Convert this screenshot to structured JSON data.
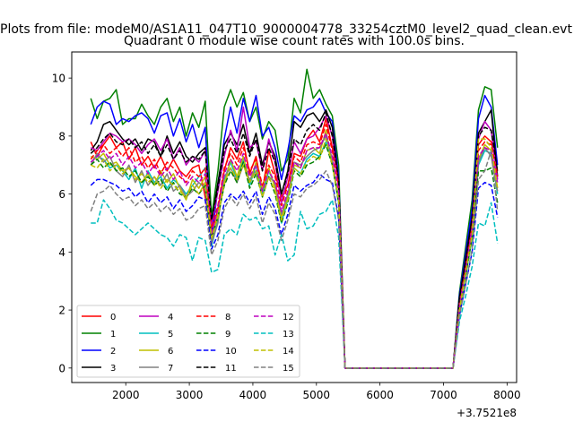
{
  "figure": {
    "suptitle": "Plots from file: modeM0/AS1A11_047T10_9000004778_33254cztM0_level2_quad_clean.evt"
  },
  "chart_data": {
    "type": "line",
    "title": "Quadrant 0 module wise count rates with 100.0s bins.",
    "xlabel": "",
    "ylabel": "",
    "x_offset_label": "+3.7521e8",
    "xlim": [
      1150,
      8150
    ],
    "ylim": [
      -0.5,
      10.9
    ],
    "x_ticks": [
      2000,
      3000,
      4000,
      5000,
      6000,
      7000,
      8000
    ],
    "x_tick_labels": [
      "2000",
      "3000",
      "4000",
      "5000",
      "6000",
      "7000",
      "8000"
    ],
    "y_ticks": [
      0,
      2,
      4,
      6,
      8,
      10
    ],
    "y_tick_labels": [
      "0",
      "2",
      "4",
      "6",
      "8",
      "10"
    ],
    "grid": false,
    "legend_placement": "lower-left",
    "legend_columns": 4,
    "x": [
      1450,
      1550,
      1650,
      1750,
      1850,
      1950,
      2050,
      2150,
      2250,
      2350,
      2450,
      2550,
      2650,
      2750,
      2850,
      2950,
      3050,
      3150,
      3250,
      3350,
      3450,
      3550,
      3650,
      3750,
      3850,
      3950,
      4050,
      4150,
      4250,
      4350,
      4450,
      4550,
      4650,
      4750,
      4850,
      4950,
      5050,
      5150,
      5250,
      5350,
      5450,
      5550,
      5650,
      5750,
      5850,
      5950,
      6050,
      6150,
      6250,
      6350,
      6450,
      6550,
      6650,
      6750,
      6850,
      6950,
      7050,
      7150,
      7250,
      7350,
      7450,
      7550,
      7650,
      7750,
      7850
    ],
    "series": [
      {
        "name": "0",
        "color": "#ff0000",
        "dash": "solid",
        "values": [
          7.8,
          7.3,
          7.7,
          8.0,
          7.6,
          7.8,
          7.2,
          7.6,
          7.0,
          7.3,
          6.9,
          7.3,
          6.8,
          7.2,
          6.8,
          6.6,
          6.9,
          7.0,
          5.9,
          4.6,
          5.5,
          6.8,
          7.6,
          7.2,
          7.8,
          6.7,
          7.3,
          6.1,
          7.5,
          6.7,
          5.9,
          6.3,
          7.4,
          7.3,
          7.9,
          8.2,
          7.8,
          8.6,
          7.6,
          6.5,
          0.0,
          0.0,
          0.0,
          0.0,
          0.0,
          0.0,
          0.0,
          0.0,
          0.0,
          0.0,
          0.0,
          0.0,
          0.0,
          0.0,
          0.0,
          0.0,
          0.0,
          0.0,
          2.3,
          3.6,
          5.0,
          7.7,
          8.0,
          7.8,
          6.8
        ]
      },
      {
        "name": "1",
        "color": "#008000",
        "dash": "solid",
        "values": [
          9.3,
          8.6,
          9.2,
          9.3,
          9.6,
          8.4,
          8.6,
          8.6,
          9.1,
          8.7,
          8.4,
          9.0,
          9.3,
          8.5,
          9.0,
          8.0,
          8.8,
          8.3,
          9.2,
          5.2,
          6.8,
          9.0,
          9.6,
          9.0,
          9.5,
          8.5,
          9.0,
          7.9,
          8.5,
          8.2,
          6.8,
          7.2,
          9.3,
          8.8,
          10.3,
          9.3,
          9.6,
          9.1,
          8.7,
          7.0,
          0.0,
          0.0,
          0.0,
          0.0,
          0.0,
          0.0,
          0.0,
          0.0,
          0.0,
          0.0,
          0.0,
          0.0,
          0.0,
          0.0,
          0.0,
          0.0,
          0.0,
          0.0,
          2.6,
          4.2,
          5.8,
          8.9,
          9.7,
          9.6,
          7.6
        ]
      },
      {
        "name": "2",
        "color": "#0000ff",
        "dash": "solid",
        "values": [
          8.4,
          9.0,
          9.2,
          9.1,
          8.4,
          8.6,
          8.5,
          8.7,
          8.8,
          8.6,
          8.1,
          8.7,
          8.8,
          8.0,
          8.6,
          7.8,
          8.4,
          7.6,
          8.3,
          4.5,
          6.2,
          7.9,
          9.0,
          8.1,
          9.3,
          8.5,
          9.4,
          8.0,
          8.3,
          7.6,
          6.5,
          7.5,
          8.7,
          8.5,
          8.9,
          9.0,
          9.3,
          8.8,
          8.5,
          6.6,
          0.0,
          0.0,
          0.0,
          0.0,
          0.0,
          0.0,
          0.0,
          0.0,
          0.0,
          0.0,
          0.0,
          0.0,
          0.0,
          0.0,
          0.0,
          0.0,
          0.0,
          0.0,
          2.5,
          4.0,
          5.5,
          8.6,
          9.4,
          9.0,
          7.0
        ]
      },
      {
        "name": "3",
        "color": "#000000",
        "dash": "solid",
        "values": [
          7.5,
          7.8,
          8.4,
          8.5,
          8.2,
          7.9,
          7.7,
          7.9,
          7.5,
          7.9,
          7.8,
          7.3,
          8.0,
          7.4,
          7.8,
          7.3,
          7.1,
          7.4,
          7.6,
          5.0,
          6.4,
          7.7,
          8.1,
          7.7,
          8.4,
          7.4,
          8.1,
          7.0,
          7.8,
          7.3,
          6.0,
          6.8,
          8.5,
          8.3,
          8.7,
          8.8,
          8.5,
          8.9,
          8.3,
          6.4,
          0.0,
          0.0,
          0.0,
          0.0,
          0.0,
          0.0,
          0.0,
          0.0,
          0.0,
          0.0,
          0.0,
          0.0,
          0.0,
          0.0,
          0.0,
          0.0,
          0.0,
          0.0,
          2.4,
          3.8,
          5.2,
          8.1,
          8.5,
          8.9,
          6.6
        ]
      },
      {
        "name": "4",
        "color": "#bf00bf",
        "dash": "solid",
        "values": [
          7.6,
          7.5,
          7.8,
          8.1,
          8.0,
          7.8,
          7.9,
          7.7,
          7.4,
          7.7,
          7.9,
          7.5,
          7.9,
          7.2,
          7.6,
          7.0,
          7.3,
          7.1,
          7.5,
          4.9,
          6.1,
          7.3,
          8.2,
          7.5,
          9.0,
          7.6,
          7.8,
          6.8,
          7.9,
          7.1,
          5.7,
          6.6,
          7.8,
          7.4,
          7.9,
          8.0,
          8.3,
          8.7,
          8.0,
          6.2,
          0.0,
          0.0,
          0.0,
          0.0,
          0.0,
          0.0,
          0.0,
          0.0,
          0.0,
          0.0,
          0.0,
          0.0,
          0.0,
          0.0,
          0.0,
          0.0,
          0.0,
          0.0,
          2.2,
          3.5,
          4.9,
          7.9,
          8.5,
          8.2,
          6.5
        ]
      },
      {
        "name": "5",
        "color": "#00bfbf",
        "dash": "solid",
        "values": [
          7.1,
          7.3,
          7.2,
          6.9,
          7.0,
          6.8,
          6.5,
          6.9,
          6.2,
          6.8,
          6.4,
          6.6,
          6.2,
          6.5,
          6.3,
          6.0,
          6.3,
          6.6,
          6.9,
          4.2,
          5.1,
          6.5,
          7.1,
          6.5,
          7.2,
          6.3,
          7.0,
          6.0,
          6.8,
          6.3,
          5.0,
          5.8,
          6.9,
          6.7,
          7.2,
          7.4,
          7.3,
          7.8,
          7.1,
          5.7,
          0.0,
          0.0,
          0.0,
          0.0,
          0.0,
          0.0,
          0.0,
          0.0,
          0.0,
          0.0,
          0.0,
          0.0,
          0.0,
          0.0,
          0.0,
          0.0,
          0.0,
          0.0,
          2.0,
          3.2,
          4.5,
          7.0,
          7.5,
          7.4,
          6.0
        ]
      },
      {
        "name": "6",
        "color": "#bfbf00",
        "dash": "solid",
        "values": [
          7.3,
          7.2,
          7.4,
          7.0,
          7.1,
          6.8,
          6.9,
          6.6,
          6.4,
          6.7,
          6.3,
          6.8,
          6.4,
          6.7,
          6.2,
          5.8,
          6.5,
          6.2,
          6.6,
          4.4,
          5.3,
          6.3,
          7.2,
          6.6,
          7.3,
          6.4,
          7.1,
          6.2,
          6.9,
          6.2,
          5.2,
          5.9,
          7.0,
          6.9,
          7.5,
          7.6,
          7.4,
          8.2,
          7.0,
          5.9,
          0.0,
          0.0,
          0.0,
          0.0,
          0.0,
          0.0,
          0.0,
          0.0,
          0.0,
          0.0,
          0.0,
          0.0,
          0.0,
          0.0,
          0.0,
          0.0,
          0.0,
          0.0,
          2.1,
          3.3,
          4.7,
          7.2,
          7.7,
          7.5,
          6.2
        ]
      },
      {
        "name": "7",
        "color": "#808080",
        "dash": "solid",
        "values": [
          7.0,
          7.4,
          7.1,
          7.3,
          6.8,
          6.6,
          7.0,
          6.4,
          6.8,
          6.3,
          6.6,
          6.3,
          6.7,
          6.1,
          6.3,
          5.9,
          6.1,
          6.4,
          6.2,
          4.3,
          5.0,
          6.6,
          6.9,
          6.4,
          7.0,
          6.5,
          6.8,
          5.9,
          6.6,
          6.4,
          5.3,
          6.0,
          7.1,
          7.0,
          7.3,
          7.5,
          7.6,
          8.0,
          7.2,
          5.8,
          0.0,
          0.0,
          0.0,
          0.0,
          0.0,
          0.0,
          0.0,
          0.0,
          0.0,
          0.0,
          0.0,
          0.0,
          0.0,
          0.0,
          0.0,
          0.0,
          0.0,
          0.0,
          2.0,
          3.3,
          4.6,
          7.1,
          7.6,
          7.3,
          6.1
        ]
      },
      {
        "name": "8",
        "color": "#ff0000",
        "dash": "dashed",
        "values": [
          7.2,
          7.5,
          7.7,
          7.4,
          7.6,
          7.3,
          7.6,
          7.1,
          7.3,
          6.9,
          7.2,
          6.7,
          7.1,
          6.9,
          6.6,
          6.4,
          6.8,
          6.6,
          6.9,
          4.8,
          5.6,
          6.9,
          7.4,
          7.0,
          7.6,
          6.8,
          7.2,
          6.3,
          7.0,
          6.6,
          5.6,
          6.3,
          7.3,
          7.1,
          7.7,
          7.8,
          7.7,
          8.4,
          7.5,
          6.3,
          0.0,
          0.0,
          0.0,
          0.0,
          0.0,
          0.0,
          0.0,
          0.0,
          0.0,
          0.0,
          0.0,
          0.0,
          0.0,
          0.0,
          0.0,
          0.0,
          0.0,
          0.0,
          2.2,
          3.5,
          4.9,
          7.5,
          7.8,
          7.7,
          6.6
        ]
      },
      {
        "name": "9",
        "color": "#008000",
        "dash": "dashed",
        "values": [
          7.0,
          7.2,
          6.9,
          7.1,
          6.8,
          6.9,
          6.6,
          6.8,
          6.4,
          6.6,
          6.3,
          6.5,
          6.1,
          6.4,
          6.0,
          5.9,
          6.2,
          6.0,
          6.3,
          4.5,
          5.2,
          6.3,
          6.8,
          6.4,
          7.1,
          6.2,
          6.7,
          5.9,
          6.6,
          6.0,
          5.0,
          5.7,
          6.8,
          6.6,
          7.0,
          7.1,
          7.3,
          7.7,
          7.0,
          5.7,
          0.0,
          0.0,
          0.0,
          0.0,
          0.0,
          0.0,
          0.0,
          0.0,
          0.0,
          0.0,
          0.0,
          0.0,
          0.0,
          0.0,
          0.0,
          0.0,
          0.0,
          0.0,
          2.0,
          3.2,
          4.5,
          6.8,
          6.8,
          6.9,
          5.7
        ]
      },
      {
        "name": "10",
        "color": "#0000ff",
        "dash": "dashed",
        "values": [
          6.3,
          6.5,
          6.5,
          6.4,
          6.3,
          6.1,
          6.2,
          5.9,
          6.1,
          5.7,
          6.0,
          5.7,
          5.9,
          5.5,
          5.8,
          5.4,
          5.6,
          5.9,
          5.8,
          4.1,
          4.6,
          5.7,
          6.0,
          5.8,
          6.1,
          5.7,
          6.1,
          5.3,
          5.9,
          5.5,
          4.6,
          5.3,
          6.3,
          6.1,
          6.3,
          6.4,
          6.7,
          6.5,
          6.4,
          5.2,
          0.0,
          0.0,
          0.0,
          0.0,
          0.0,
          0.0,
          0.0,
          0.0,
          0.0,
          0.0,
          0.0,
          0.0,
          0.0,
          0.0,
          0.0,
          0.0,
          0.0,
          0.0,
          1.8,
          2.9,
          4.0,
          6.2,
          6.4,
          6.3,
          5.2
        ]
      },
      {
        "name": "11",
        "color": "#000000",
        "dash": "dashed",
        "values": [
          7.4,
          7.6,
          7.9,
          8.1,
          7.8,
          7.7,
          7.9,
          7.6,
          7.8,
          7.4,
          7.7,
          7.3,
          7.7,
          7.2,
          7.5,
          7.1,
          7.3,
          7.2,
          7.5,
          5.1,
          6.2,
          7.5,
          7.9,
          7.4,
          8.1,
          7.3,
          7.9,
          6.8,
          7.6,
          7.1,
          6.0,
          6.7,
          7.9,
          7.7,
          8.2,
          8.4,
          8.2,
          8.8,
          8.0,
          6.5,
          0.0,
          0.0,
          0.0,
          0.0,
          0.0,
          0.0,
          0.0,
          0.0,
          0.0,
          0.0,
          0.0,
          0.0,
          0.0,
          0.0,
          0.0,
          0.0,
          0.0,
          0.0,
          2.4,
          3.7,
          5.2,
          8.0,
          8.3,
          8.2,
          6.8
        ]
      },
      {
        "name": "12",
        "color": "#bf00bf",
        "dash": "dashed",
        "values": [
          7.1,
          7.3,
          7.5,
          7.2,
          7.4,
          7.0,
          7.3,
          6.9,
          7.1,
          6.7,
          7.0,
          6.6,
          6.9,
          6.5,
          6.8,
          6.3,
          6.6,
          6.4,
          6.7,
          4.6,
          5.5,
          6.7,
          7.2,
          6.8,
          7.4,
          6.6,
          7.0,
          6.1,
          6.8,
          6.4,
          5.4,
          6.1,
          7.1,
          6.9,
          7.5,
          7.6,
          7.6,
          8.1,
          7.3,
          6.1,
          0.0,
          0.0,
          0.0,
          0.0,
          0.0,
          0.0,
          0.0,
          0.0,
          0.0,
          0.0,
          0.0,
          0.0,
          0.0,
          0.0,
          0.0,
          0.0,
          0.0,
          0.0,
          2.1,
          3.4,
          4.8,
          7.3,
          7.6,
          7.5,
          6.4
        ]
      },
      {
        "name": "13",
        "color": "#00bfbf",
        "dash": "dashed",
        "values": [
          5.0,
          5.0,
          5.8,
          5.5,
          5.1,
          5.0,
          4.8,
          4.6,
          4.8,
          5.0,
          4.8,
          4.6,
          4.5,
          4.2,
          4.6,
          4.5,
          3.7,
          4.5,
          4.4,
          3.3,
          3.4,
          4.6,
          4.8,
          4.6,
          5.3,
          5.1,
          5.2,
          4.8,
          4.9,
          3.9,
          4.6,
          3.7,
          3.9,
          5.4,
          4.8,
          4.9,
          5.3,
          5.4,
          5.8,
          4.5,
          0.0,
          0.0,
          0.0,
          0.0,
          0.0,
          0.0,
          0.0,
          0.0,
          0.0,
          0.0,
          0.0,
          0.0,
          0.0,
          0.0,
          0.0,
          0.0,
          0.0,
          0.0,
          1.6,
          2.5,
          3.5,
          5.0,
          4.9,
          5.7,
          4.3
        ]
      },
      {
        "name": "14",
        "color": "#bfbf00",
        "dash": "dashed",
        "values": [
          7.0,
          6.9,
          7.2,
          6.8,
          7.0,
          6.7,
          6.9,
          6.5,
          6.7,
          6.4,
          6.6,
          6.2,
          6.5,
          6.3,
          6.1,
          5.9,
          6.3,
          6.0,
          6.4,
          4.5,
          5.2,
          6.4,
          6.9,
          6.5,
          7.0,
          6.4,
          6.8,
          5.9,
          6.6,
          6.1,
          5.1,
          5.8,
          6.9,
          6.7,
          7.1,
          7.3,
          7.2,
          7.9,
          7.0,
          5.8,
          0.0,
          0.0,
          0.0,
          0.0,
          0.0,
          0.0,
          0.0,
          0.0,
          0.0,
          0.0,
          0.0,
          0.0,
          0.0,
          0.0,
          0.0,
          0.0,
          0.0,
          0.0,
          2.0,
          3.3,
          4.6,
          7.9,
          7.9,
          7.6,
          6.2
        ]
      },
      {
        "name": "15",
        "color": "#808080",
        "dash": "dashed",
        "values": [
          5.4,
          6.0,
          6.1,
          6.3,
          6.0,
          5.8,
          5.9,
          5.6,
          5.8,
          5.5,
          5.7,
          5.4,
          5.6,
          5.3,
          5.5,
          5.1,
          5.2,
          5.5,
          5.6,
          3.9,
          4.4,
          5.5,
          5.9,
          5.6,
          6.0,
          5.5,
          5.9,
          5.0,
          5.7,
          5.3,
          4.4,
          5.1,
          6.0,
          5.9,
          6.2,
          6.3,
          6.5,
          6.8,
          6.3,
          5.1,
          0.0,
          0.0,
          0.0,
          0.0,
          0.0,
          0.0,
          0.0,
          0.0,
          0.0,
          0.0,
          0.0,
          0.0,
          0.0,
          0.0,
          0.0,
          0.0,
          0.0,
          0.0,
          1.8,
          2.9,
          4.1,
          6.5,
          6.8,
          7.5,
          5.4
        ]
      }
    ]
  }
}
